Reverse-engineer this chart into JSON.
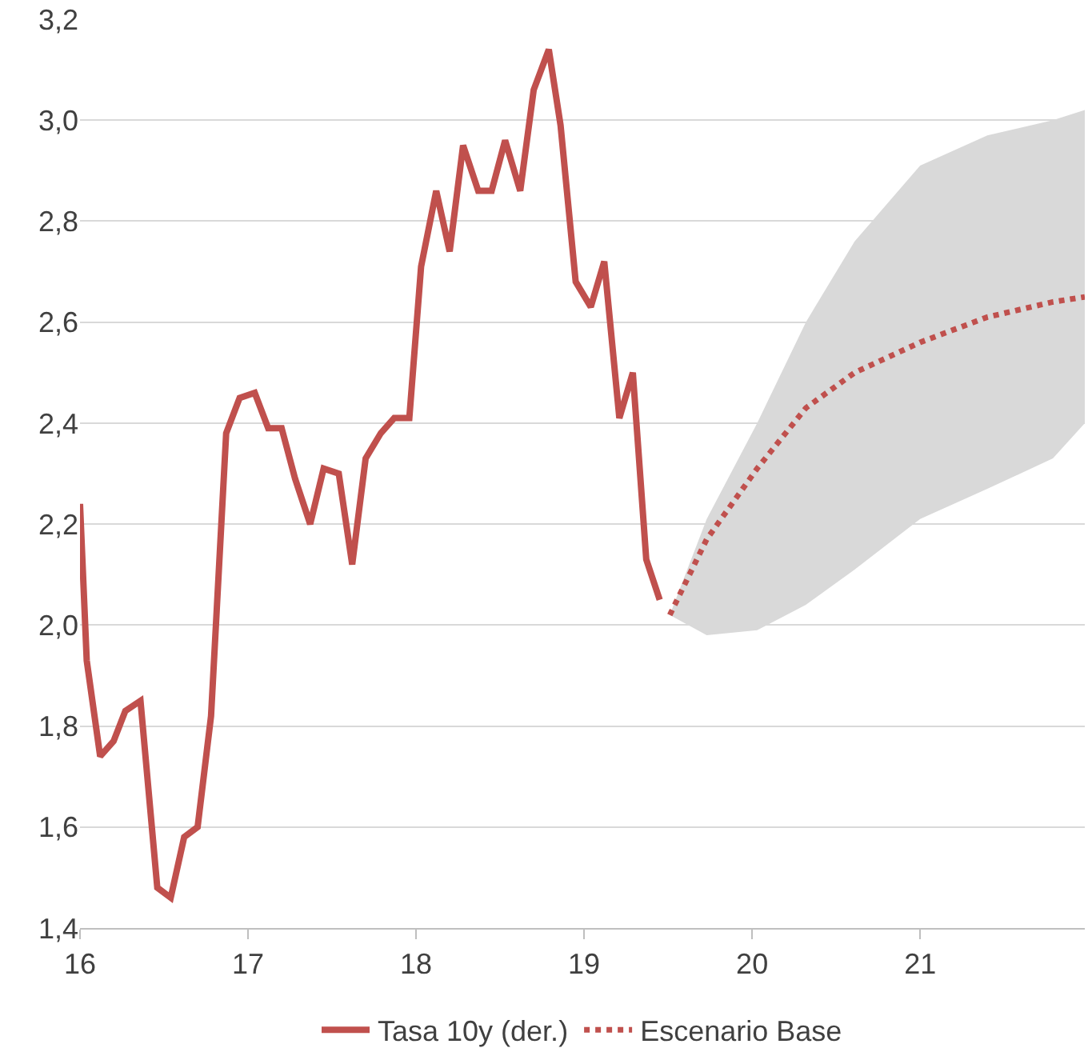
{
  "chart_data": {
    "type": "line",
    "xlim": [
      16,
      21.98
    ],
    "xticks": [
      16,
      17,
      18,
      19,
      20,
      21
    ],
    "ylim": [
      1.4,
      3.2
    ],
    "yticks": [
      {
        "value": 1.4,
        "label": "1,4"
      },
      {
        "value": 1.6,
        "label": "1,6"
      },
      {
        "value": 1.8,
        "label": "1,8"
      },
      {
        "value": 2.0,
        "label": "2,0"
      },
      {
        "value": 2.2,
        "label": "2,2"
      },
      {
        "value": 2.4,
        "label": "2,4"
      },
      {
        "value": 2.6,
        "label": "2,6"
      },
      {
        "value": 2.8,
        "label": "2,8"
      },
      {
        "value": 3.0,
        "label": "3,0"
      },
      {
        "value": 3.2,
        "label": "3,2"
      }
    ],
    "grid": "y",
    "legend": "bottom",
    "series": [
      {
        "name": "Tasa 10y (der.)",
        "color": "#c0504d",
        "line_style": "solid",
        "x": [
          16.0,
          16.04,
          16.12,
          16.2,
          16.27,
          16.36,
          16.46,
          16.54,
          16.62,
          16.7,
          16.78,
          16.87,
          16.95,
          17.04,
          17.12,
          17.2,
          17.28,
          17.37,
          17.45,
          17.54,
          17.62,
          17.7,
          17.79,
          17.87,
          17.96,
          18.03,
          18.12,
          18.2,
          18.28,
          18.37,
          18.45,
          18.53,
          18.62,
          18.7,
          18.79,
          18.86,
          18.95,
          19.04,
          19.12,
          19.21,
          19.29,
          19.37,
          19.45
        ],
        "values": [
          2.24,
          1.93,
          1.74,
          1.77,
          1.83,
          1.85,
          1.48,
          1.46,
          1.58,
          1.6,
          1.82,
          2.38,
          2.45,
          2.46,
          2.39,
          2.39,
          2.29,
          2.2,
          2.31,
          2.3,
          2.12,
          2.33,
          2.38,
          2.41,
          2.41,
          2.71,
          2.86,
          2.74,
          2.95,
          2.86,
          2.86,
          2.96,
          2.86,
          3.06,
          3.14,
          2.99,
          2.68,
          2.63,
          2.72,
          2.41,
          2.5,
          2.13,
          2.05
        ]
      },
      {
        "name": "Escenario Base",
        "color": "#c0504d",
        "line_style": "dotted",
        "x": [
          19.51,
          19.73,
          20.03,
          20.32,
          20.61,
          21.0,
          21.4,
          21.79,
          21.98
        ],
        "values": [
          2.02,
          2.17,
          2.31,
          2.43,
          2.5,
          2.56,
          2.61,
          2.64,
          2.65
        ],
        "lower": [
          2.02,
          1.98,
          1.99,
          2.04,
          2.11,
          2.21,
          2.27,
          2.33,
          2.4
        ],
        "upper": [
          2.02,
          2.21,
          2.4,
          2.6,
          2.76,
          2.91,
          2.97,
          3.0,
          3.02
        ]
      }
    ]
  }
}
